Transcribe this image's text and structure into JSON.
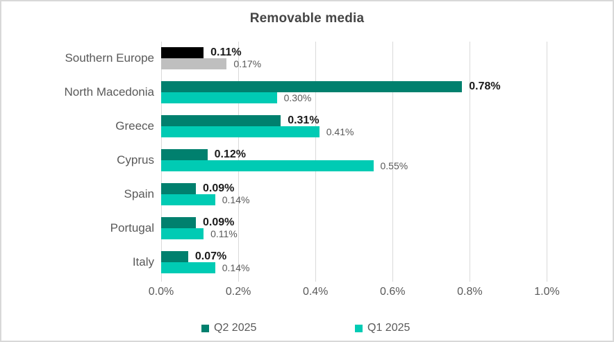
{
  "chart_data": {
    "type": "bar",
    "orientation": "horizontal",
    "title": "Removable media",
    "categories": [
      "Southern Europe",
      "North Macedonia",
      "Greece",
      "Cyprus",
      "Spain",
      "Portugal",
      "Italy"
    ],
    "series": [
      {
        "name": "Q2 2025",
        "color": "#00806E",
        "values": [
          0.11,
          0.78,
          0.31,
          0.12,
          0.09,
          0.09,
          0.07
        ],
        "labels": [
          "0.11%",
          "0.78%",
          "0.31%",
          "0.12%",
          "0.09%",
          "0.09%",
          "0.07%"
        ]
      },
      {
        "name": "Q1 2025",
        "color": "#00CBB4",
        "values": [
          0.17,
          0.3,
          0.41,
          0.55,
          0.14,
          0.11,
          0.14
        ],
        "labels": [
          "0.17%",
          "0.30%",
          "0.41%",
          "0.55%",
          "0.14%",
          "0.11%",
          "0.14%"
        ]
      }
    ],
    "point_color_overrides": [
      {
        "category": "Southern Europe",
        "series": "Q2 2025",
        "color": "#000000"
      },
      {
        "category": "Southern Europe",
        "series": "Q1 2025",
        "color": "#BFBFBF"
      }
    ],
    "x_ticks": [
      "0.0%",
      "0.2%",
      "0.4%",
      "0.6%",
      "0.8%",
      "1.0%"
    ],
    "x_tick_values": [
      0.0,
      0.2,
      0.4,
      0.6,
      0.8,
      1.0
    ],
    "xlim": [
      0,
      1.1
    ],
    "grid": true,
    "legend_position": "bottom",
    "colors": {
      "gridline": "#D9D9D9",
      "axis_text": "#595959",
      "category_text": "#595959",
      "title_text": "#454545",
      "q2_label_text": "#1A1A1A",
      "q1_label_text": "#595959"
    }
  }
}
